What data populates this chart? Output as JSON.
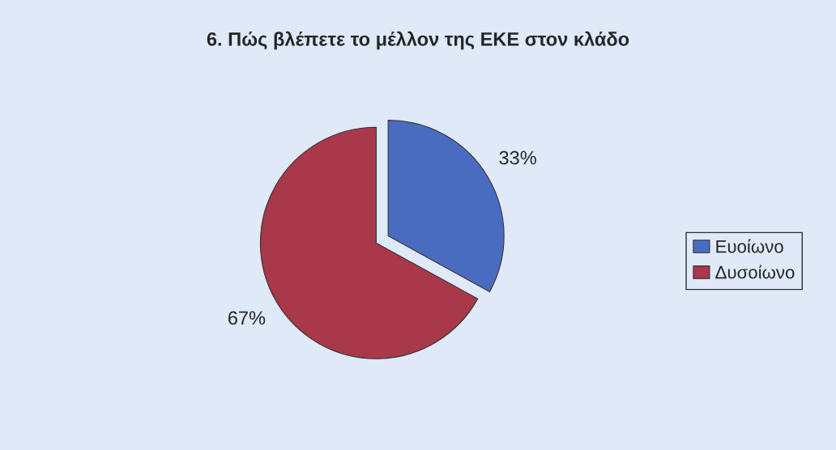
{
  "chart_data": {
    "type": "pie",
    "title": "6. Πώς βλέπετε το μέλλον της ΕΚΕ στον κλάδο",
    "categories": [
      "Ευοίωνο",
      "Δυσοίωνο"
    ],
    "values": [
      33,
      67
    ],
    "value_labels": [
      "33%",
      "67%"
    ],
    "colors": [
      "#4a6cc0",
      "#a8384a"
    ],
    "legend": "right"
  }
}
